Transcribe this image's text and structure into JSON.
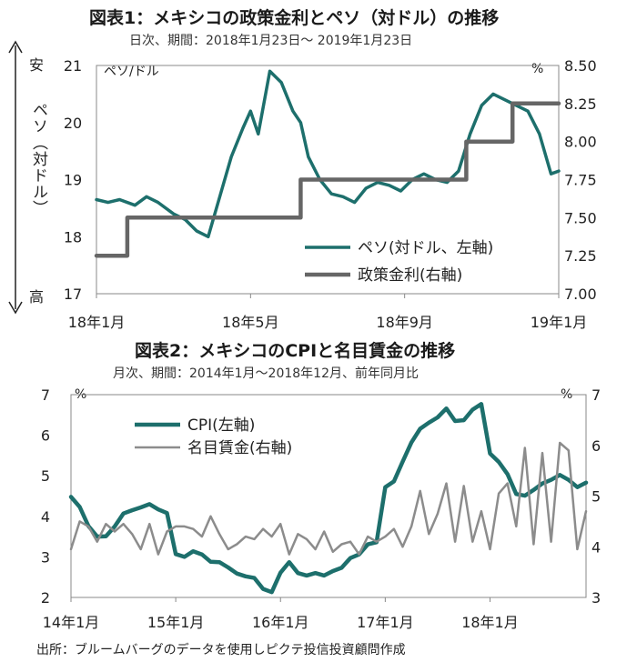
{
  "chart_data": [
    {
      "type": "line",
      "title": "図表1：メキシコの政策金利とペソ（対ドル）の推移",
      "subtitle": "日次、期間：2018年1月23日～ 2019年1月23日",
      "left_axis_label": "ペソ（対ドル）",
      "top_marker": "安",
      "bottom_marker": "高",
      "left_unit": "ペソ/ドル",
      "right_unit": "%",
      "x_ticks": [
        "18年1月",
        "18年5月",
        "18年9月",
        "19年1月"
      ],
      "ylim_left": [
        17,
        21
      ],
      "yticks_left": [
        "17",
        "18",
        "19",
        "20",
        "21"
      ],
      "ylim_right": [
        7.0,
        8.5
      ],
      "yticks_right": [
        "7.00",
        "7.25",
        "7.50",
        "7.75",
        "8.00",
        "8.25",
        "8.50"
      ],
      "series": [
        {
          "name": "ペソ(対ドル、左軸)",
          "axis": "left",
          "color": "#1d6f6c",
          "x": [
            0,
            0.3,
            0.6,
            1.0,
            1.3,
            1.6,
            2.0,
            2.3,
            2.6,
            2.9,
            3.2,
            3.5,
            3.8,
            4.0,
            4.2,
            4.5,
            4.8,
            5.1,
            5.3,
            5.5,
            5.8,
            6.1,
            6.4,
            6.7,
            7.0,
            7.3,
            7.6,
            7.9,
            8.2,
            8.5,
            8.8,
            9.1,
            9.4,
            9.7,
            10.0,
            10.3,
            10.6,
            10.9,
            11.2,
            11.5,
            11.8,
            12.0
          ],
          "values": [
            18.65,
            18.6,
            18.65,
            18.55,
            18.7,
            18.6,
            18.4,
            18.3,
            18.1,
            18.0,
            18.7,
            19.4,
            19.9,
            20.2,
            19.8,
            20.9,
            20.7,
            20.2,
            20.0,
            19.4,
            19.0,
            18.75,
            18.7,
            18.6,
            18.85,
            18.95,
            18.9,
            18.8,
            19.0,
            19.1,
            19.0,
            18.95,
            19.15,
            19.8,
            20.3,
            20.5,
            20.4,
            20.3,
            20.2,
            19.8,
            19.1,
            19.15
          ]
        },
        {
          "name": "政策金利(右軸)",
          "axis": "right",
          "color": "#666666",
          "x": [
            0,
            0.8,
            0.8,
            5.3,
            5.3,
            9.6,
            9.6,
            10.8,
            10.8,
            12.0
          ],
          "values": [
            7.25,
            7.25,
            7.5,
            7.5,
            7.75,
            7.75,
            8.0,
            8.0,
            8.25,
            8.25
          ]
        }
      ],
      "legend_position": "bottom-right"
    },
    {
      "type": "line",
      "title": "図表2：メキシコのCPIと名目賃金の推移",
      "subtitle": "月次、期間：2014年1月～2018年12月、前年同月比",
      "left_unit": "%",
      "right_unit": "%",
      "x_ticks": [
        "14年1月",
        "15年1月",
        "16年1月",
        "17年1月",
        "18年1月"
      ],
      "ylim_left": [
        2,
        7
      ],
      "yticks_left": [
        "2",
        "3",
        "4",
        "5",
        "6",
        "7"
      ],
      "ylim_right": [
        3,
        7
      ],
      "yticks_right": [
        "3",
        "4",
        "5",
        "6",
        "7"
      ],
      "series": [
        {
          "name": "CPI(左軸)",
          "axis": "left",
          "color": "#1d6f6c",
          "x": [
            0,
            1,
            2,
            3,
            4,
            5,
            6,
            7,
            8,
            9,
            10,
            11,
            12,
            13,
            14,
            15,
            16,
            17,
            18,
            19,
            20,
            21,
            22,
            23,
            24,
            25,
            26,
            27,
            28,
            29,
            30,
            31,
            32,
            33,
            34,
            35,
            36,
            37,
            38,
            39,
            40,
            41,
            42,
            43,
            44,
            45,
            46,
            47,
            48,
            49,
            50,
            51,
            52,
            53,
            54,
            55,
            56,
            57,
            58,
            59
          ],
          "values": [
            4.48,
            4.23,
            3.76,
            3.5,
            3.51,
            3.75,
            4.07,
            4.15,
            4.22,
            4.3,
            4.17,
            4.08,
            3.07,
            3.0,
            3.14,
            3.06,
            2.88,
            2.87,
            2.74,
            2.59,
            2.52,
            2.48,
            2.21,
            2.13,
            2.61,
            2.87,
            2.6,
            2.54,
            2.6,
            2.54,
            2.65,
            2.73,
            2.97,
            3.06,
            3.31,
            3.36,
            4.72,
            4.86,
            5.35,
            5.82,
            6.16,
            6.31,
            6.44,
            6.66,
            6.35,
            6.37,
            6.63,
            6.77,
            5.55,
            5.34,
            5.04,
            4.55,
            4.51,
            4.65,
            4.81,
            4.9,
            5.02,
            4.9,
            4.72,
            4.83
          ]
        },
        {
          "name": "名目賃金(右軸)",
          "axis": "right",
          "color": "#8c8c8c",
          "x": [
            0,
            1,
            2,
            3,
            4,
            5,
            6,
            7,
            8,
            9,
            10,
            11,
            12,
            13,
            14,
            15,
            16,
            17,
            18,
            19,
            20,
            21,
            22,
            23,
            24,
            25,
            26,
            27,
            28,
            29,
            30,
            31,
            32,
            33,
            34,
            35,
            36,
            37,
            38,
            39,
            40,
            41,
            42,
            43,
            44,
            45,
            46,
            47,
            48,
            49,
            50,
            51,
            52,
            53,
            54,
            55,
            56,
            57,
            58,
            59
          ],
          "values": [
            3.95,
            4.5,
            4.4,
            4.1,
            4.45,
            4.3,
            4.45,
            4.25,
            3.95,
            4.45,
            3.85,
            4.3,
            4.4,
            4.4,
            4.35,
            4.2,
            4.6,
            4.25,
            3.95,
            4.05,
            4.2,
            4.15,
            4.35,
            4.2,
            4.45,
            3.85,
            4.25,
            4.15,
            3.95,
            4.3,
            3.9,
            4.05,
            4.1,
            3.85,
            4.2,
            4.1,
            4.2,
            4.35,
            4.0,
            4.4,
            5.1,
            4.25,
            4.65,
            5.25,
            4.1,
            5.2,
            4.1,
            4.7,
            3.95,
            5.05,
            5.25,
            4.4,
            5.95,
            4.05,
            5.85,
            4.1,
            6.05,
            5.9,
            3.95,
            4.7
          ]
        }
      ],
      "legend_position": "top-left"
    }
  ],
  "footer": "出所：ブルームバーグのデータを使用しピクテ投信投資顧問作成"
}
